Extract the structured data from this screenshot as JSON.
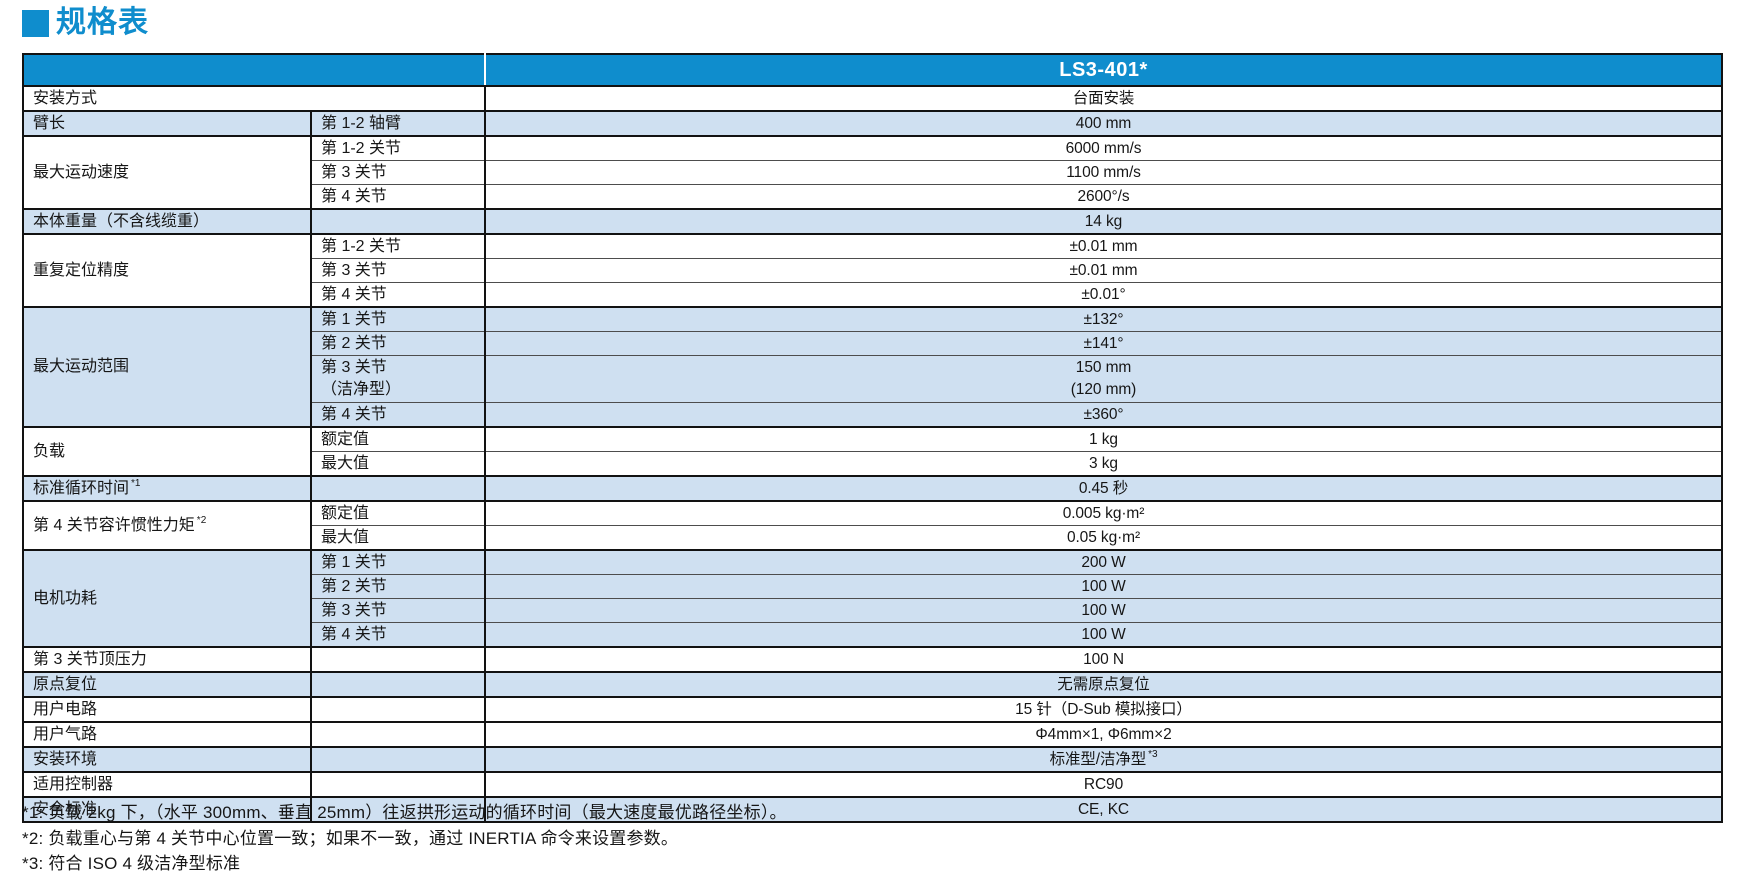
{
  "title": "规格表",
  "colors": {
    "brand_blue": "#0f8dcd",
    "row_shade": "#cfe0f1",
    "border_dark": "#121212"
  },
  "table": {
    "model": "LS3-401*",
    "groups": [
      {
        "label": "安装方式",
        "span_two": true,
        "shaded": false,
        "rows": [
          {
            "sub": "",
            "value": "台面安装"
          }
        ]
      },
      {
        "label": "臂长",
        "shaded": true,
        "rows": [
          {
            "sub": "第 1-2 轴臂",
            "value": "400 mm"
          }
        ]
      },
      {
        "label": "最大运动速度",
        "shaded": false,
        "rows": [
          {
            "sub": "第 1-2 关节",
            "value": "6000 mm/s"
          },
          {
            "sub": "第 3 关节",
            "value": "1100 mm/s"
          },
          {
            "sub": "第 4 关节",
            "value": "2600°/s"
          }
        ]
      },
      {
        "label": "本体重量（不含线缆重）",
        "shaded": true,
        "rows": [
          {
            "sub": "",
            "value": "14 kg"
          }
        ]
      },
      {
        "label": "重复定位精度",
        "shaded": false,
        "rows": [
          {
            "sub": "第 1-2 关节",
            "value": "±0.01 mm"
          },
          {
            "sub": "第 3 关节",
            "value": "±0.01 mm"
          },
          {
            "sub": "第 4 关节",
            "value": "±0.01°"
          }
        ]
      },
      {
        "label": "最大运动范围",
        "shaded": true,
        "rows": [
          {
            "sub": "第 1 关节",
            "value": "±132°"
          },
          {
            "sub": "第 2 关节",
            "value": "±141°"
          },
          {
            "sub": "第 3 关节",
            "sub2": "（洁净型）",
            "value": "150 mm",
            "value2": "(120 mm)"
          },
          {
            "sub": "第 4 关节",
            "value": "±360°"
          }
        ]
      },
      {
        "label": "负载",
        "shaded": false,
        "rows": [
          {
            "sub": "额定值",
            "value": "1 kg"
          },
          {
            "sub": "最大值",
            "value": "3 kg"
          }
        ]
      },
      {
        "label": "标准循环时间",
        "label_sup": "*1",
        "shaded": true,
        "rows": [
          {
            "sub": "",
            "value": "0.45 秒"
          }
        ]
      },
      {
        "label": "第 4 关节容许惯性力矩",
        "label_sup": "*2",
        "shaded": false,
        "rows": [
          {
            "sub": "额定值",
            "value": "0.005 kg·m²"
          },
          {
            "sub": "最大值",
            "value": "0.05 kg·m²"
          }
        ]
      },
      {
        "label": "电机功耗",
        "shaded": true,
        "rows": [
          {
            "sub": "第 1 关节",
            "value": "200 W"
          },
          {
            "sub": "第 2 关节",
            "value": "100 W"
          },
          {
            "sub": "第 3 关节",
            "value": "100 W"
          },
          {
            "sub": "第 4 关节",
            "value": "100 W"
          }
        ]
      },
      {
        "label": "第 3 关节顶压力",
        "shaded": false,
        "rows": [
          {
            "sub": "",
            "value": "100 N"
          }
        ]
      },
      {
        "label": "原点复位",
        "shaded": true,
        "rows": [
          {
            "sub": "",
            "value": "无需原点复位"
          }
        ]
      },
      {
        "label": "用户电路",
        "shaded": false,
        "rows": [
          {
            "sub": "",
            "value": "15 针（D-Sub 模拟接口）"
          }
        ]
      },
      {
        "label": "用户气路",
        "shaded": false,
        "rows": [
          {
            "sub": "",
            "value": "Φ4mm×1, Φ6mm×2"
          }
        ]
      },
      {
        "label": "安装环境",
        "shaded": true,
        "rows": [
          {
            "sub": "",
            "value": "标准型/洁净型",
            "value_sup": "*3"
          }
        ]
      },
      {
        "label": "适用控制器",
        "shaded": false,
        "rows": [
          {
            "sub": "",
            "value": "RC90"
          }
        ]
      },
      {
        "label": "安全标准",
        "shaded": true,
        "rows": [
          {
            "sub": "",
            "value": "CE, KC"
          }
        ]
      }
    ]
  },
  "footnotes": [
    "*1: 负载 2kg 下，（水平 300mm、垂直 25mm）往返拱形运动的循环时间（最大速度最优路径坐标）。",
    "*2: 负载重心与第 4 关节中心位置一致；如果不一致，通过 INERTIA 命令来设置参数。",
    "*3: 符合 ISO 4 级洁净型标准"
  ]
}
